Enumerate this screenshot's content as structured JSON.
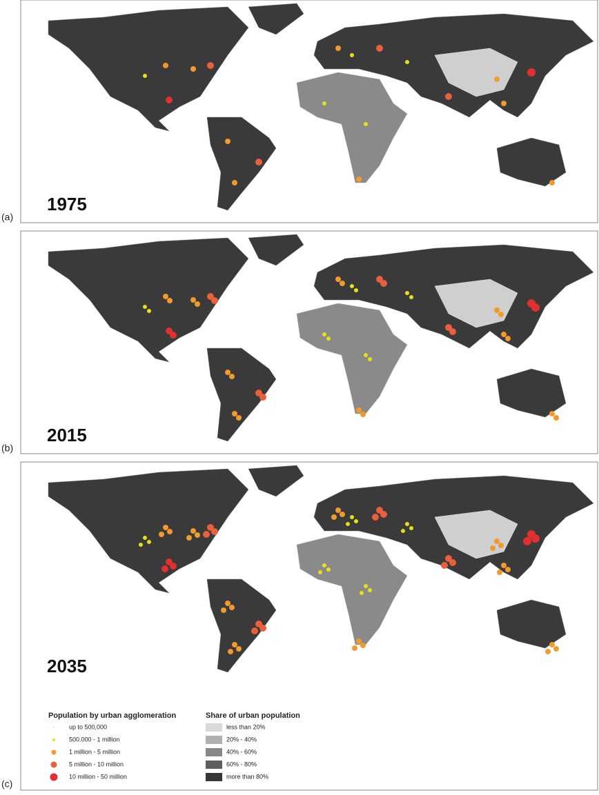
{
  "panels": [
    {
      "label": "(a)",
      "year": "1975"
    },
    {
      "label": "(b)",
      "year": "2015"
    },
    {
      "label": "(c)",
      "year": "2035"
    }
  ],
  "legend": {
    "population": {
      "title": "Population by urban agglomeration",
      "items": [
        "up to 500,000",
        "500.000 - 1 million",
        "1 million - 5 million",
        "5 million - 10 million",
        "10 million - 50 million"
      ]
    },
    "share": {
      "title": "Share of urban population",
      "items": [
        "less than 20%",
        "20% - 40%",
        "40% - 60%",
        "60% - 80%",
        "more than 80%"
      ]
    }
  }
}
